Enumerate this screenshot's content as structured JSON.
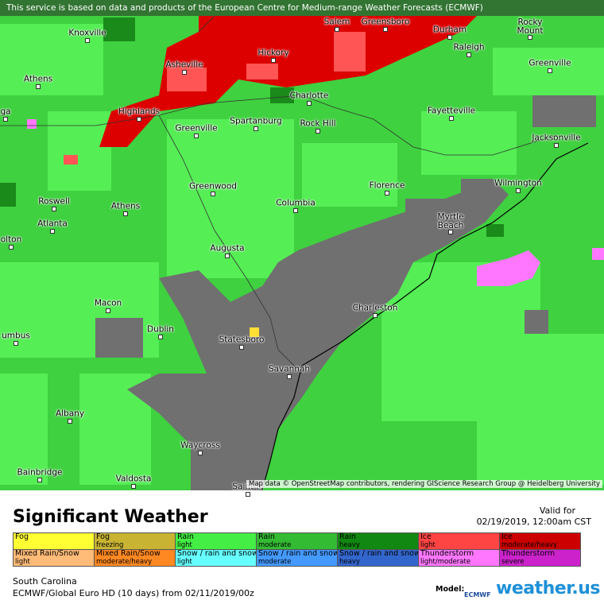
{
  "header": {
    "notice": "This service is based on data and products of the European Centre for Medium-range Weather Forecasts (ECMWF)"
  },
  "map": {
    "cities": [
      {
        "label": "Knoxville"
      },
      {
        "label": "Salem"
      },
      {
        "label": "Greensboro"
      },
      {
        "label": "Durham"
      },
      {
        "label": "Rocky Mount"
      },
      {
        "label": "Raleigh"
      },
      {
        "label": "Greenville"
      },
      {
        "label": "Asheville"
      },
      {
        "label": "Hickory"
      },
      {
        "label": "Athens"
      },
      {
        "label": "Charlotte"
      },
      {
        "label": "Highlands"
      },
      {
        "label": "ga"
      },
      {
        "label": "Fayetteville"
      },
      {
        "label": "Greenville"
      },
      {
        "label": "Spartanburg"
      },
      {
        "label": "Rock Hill"
      },
      {
        "label": "Jacksonville"
      },
      {
        "label": "Greenwood"
      },
      {
        "label": "Florence"
      },
      {
        "label": "Wilmington"
      },
      {
        "label": "Roswell"
      },
      {
        "label": "Athens"
      },
      {
        "label": "Columbia"
      },
      {
        "label": "Myrtle Beach"
      },
      {
        "label": "Atlanta"
      },
      {
        "label": "olton"
      },
      {
        "label": "Augusta"
      },
      {
        "label": "Macon"
      },
      {
        "label": "Charleston"
      },
      {
        "label": "Dublin"
      },
      {
        "label": "Statesboro"
      },
      {
        "label": "umbus"
      },
      {
        "label": "Savannah"
      },
      {
        "label": "Albany"
      },
      {
        "label": "Waycross"
      },
      {
        "label": "Bainbridge"
      },
      {
        "label": "Valdosta"
      },
      {
        "label": "Saint M"
      }
    ],
    "attribution": "Map data © OpenStreetMap contributors, rendering GIScience Research Group @ Heidelberg University"
  },
  "legend": {
    "title": "Significant Weather",
    "valid_label": "Valid for",
    "valid_time": "02/19/2019, 12:00am CST",
    "items": [
      {
        "name": "Fog",
        "color": "#ffff33"
      },
      {
        "name": "Fog",
        "intensity": "freezing",
        "color": "#c8b432"
      },
      {
        "name": "Rain",
        "intensity": "light",
        "color": "#44ee44"
      },
      {
        "name": "Rain",
        "intensity": "moderate",
        "color": "#33bb33"
      },
      {
        "name": "Rain",
        "intensity": "heavy",
        "color": "#118811"
      },
      {
        "name": "Ice",
        "intensity": "light",
        "color": "#ff4444"
      },
      {
        "name": "Ice",
        "intensity": "moderate/heavy",
        "color": "#cc0000"
      },
      {
        "name": "Mixed Rain/Snow",
        "intensity": "light",
        "color": "#ffbb77"
      },
      {
        "name": "Mixed Rain/Snow",
        "intensity": "moderate/heavy",
        "color": "#ff8822"
      },
      {
        "name": "Snow / rain and snow",
        "intensity": "light",
        "color": "#66ffff"
      },
      {
        "name": "Snow / rain and snow",
        "intensity": "moderate",
        "color": "#4499ff"
      },
      {
        "name": "Snow / rain and snow",
        "intensity": "heavy",
        "color": "#3366cc"
      },
      {
        "name": "Thunderstorm",
        "intensity": "light/moderate",
        "color": "#ff77ff"
      },
      {
        "name": "Thunderstorm",
        "intensity": "severe",
        "color": "#cc22cc"
      }
    ]
  },
  "footer": {
    "region": "South Carolina",
    "model_run": "ECMWF/Global Euro HD (10 days) from 02/11/2019/00z",
    "model_label": "Model:",
    "model_logo": "ECMWF",
    "brand": "weather.us"
  }
}
